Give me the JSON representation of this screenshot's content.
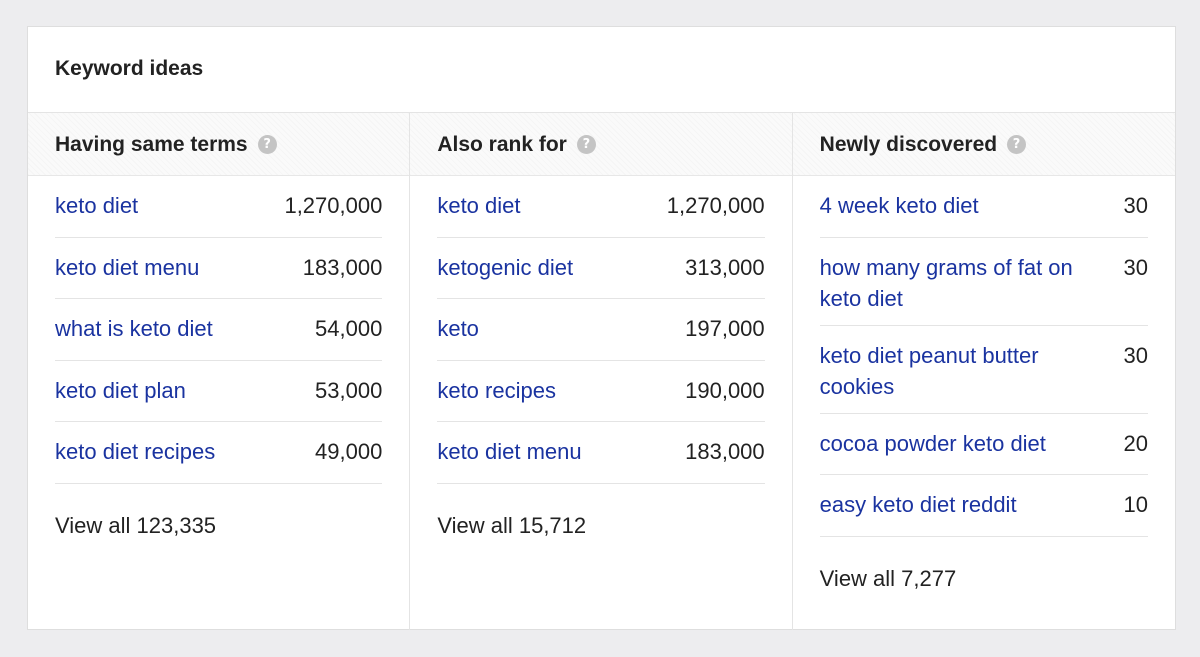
{
  "card": {
    "title": "Keyword ideas"
  },
  "columns": [
    {
      "title": "Having same terms",
      "help_icon": "question-mark",
      "rows": [
        {
          "keyword": "keto diet",
          "volume": "1,270,000"
        },
        {
          "keyword": "keto diet menu",
          "volume": "183,000"
        },
        {
          "keyword": "what is keto diet",
          "volume": "54,000"
        },
        {
          "keyword": "keto diet plan",
          "volume": "53,000"
        },
        {
          "keyword": "keto diet recipes",
          "volume": "49,000"
        }
      ],
      "view_all": "View all 123,335"
    },
    {
      "title": "Also rank for",
      "help_icon": "question-mark",
      "rows": [
        {
          "keyword": "keto diet",
          "volume": "1,270,000"
        },
        {
          "keyword": "ketogenic diet",
          "volume": "313,000"
        },
        {
          "keyword": "keto",
          "volume": "197,000"
        },
        {
          "keyword": "keto recipes",
          "volume": "190,000"
        },
        {
          "keyword": "keto diet menu",
          "volume": "183,000"
        }
      ],
      "view_all": "View all 15,712"
    },
    {
      "title": "Newly discovered",
      "help_icon": "question-mark",
      "rows": [
        {
          "keyword": "4 week keto diet",
          "volume": "30"
        },
        {
          "keyword": "how many grams of fat on keto diet",
          "volume": "30"
        },
        {
          "keyword": "keto diet peanut butter cookies",
          "volume": "30"
        },
        {
          "keyword": "cocoa powder keto diet",
          "volume": "20"
        },
        {
          "keyword": "easy keto diet reddit",
          "volume": "10"
        }
      ],
      "view_all": "View all 7,277"
    }
  ],
  "colors": {
    "link": "#1a33a0",
    "text": "#222222",
    "background": "#ededef",
    "card": "#ffffff"
  }
}
